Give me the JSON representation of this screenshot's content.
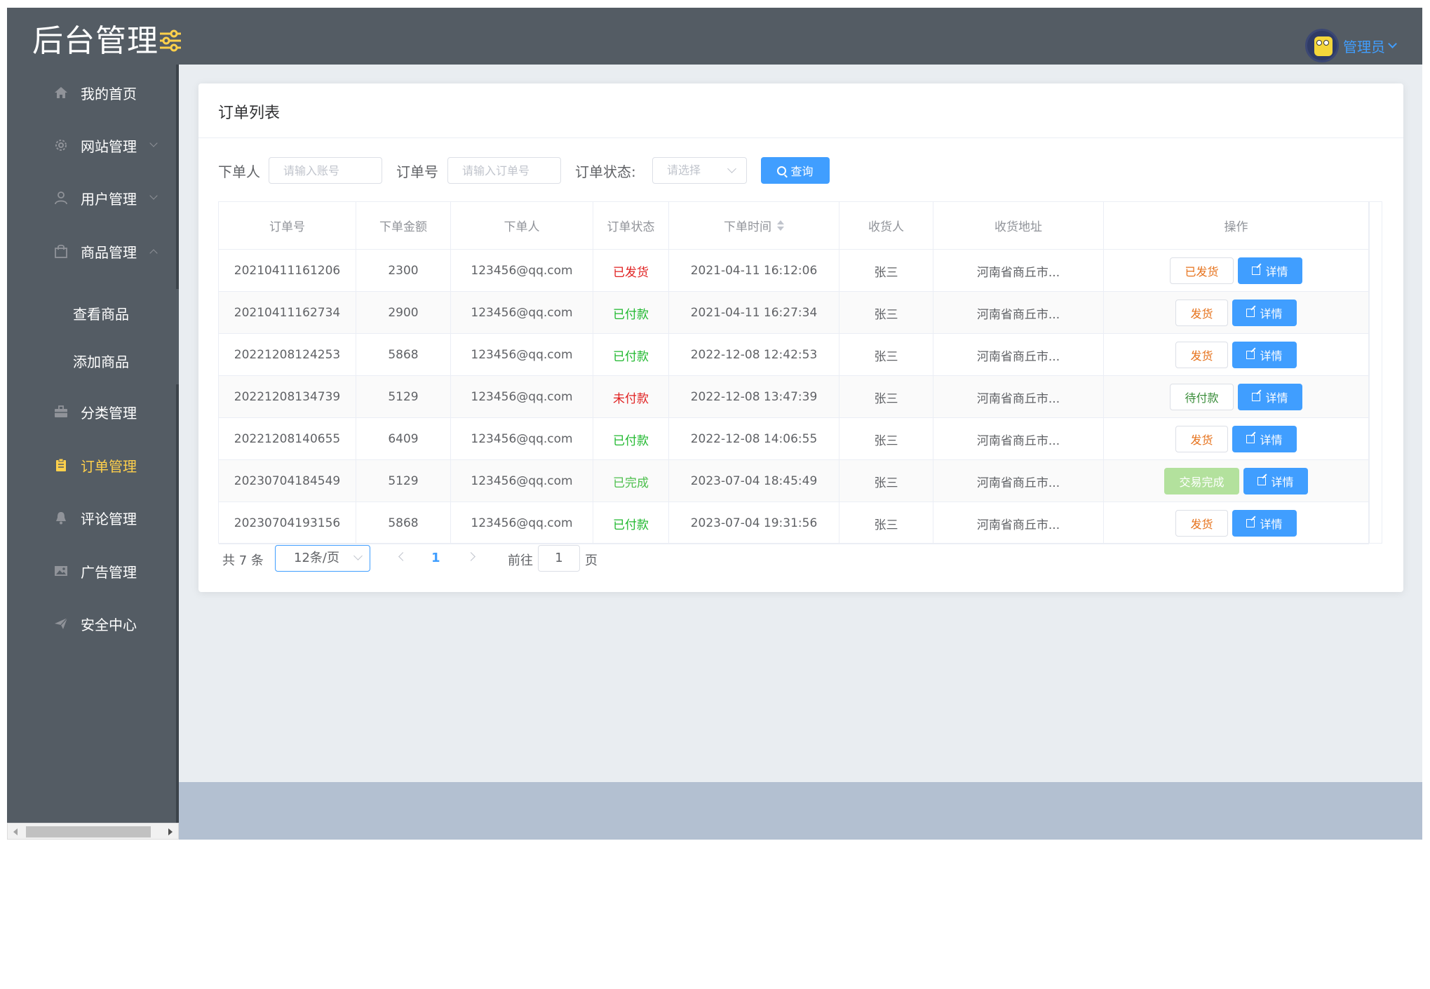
{
  "header": {
    "brand": "后台管理",
    "user_name": "管理员"
  },
  "sidebar": {
    "items": [
      {
        "label": "我的首页",
        "icon": "home-icon"
      },
      {
        "label": "网站管理",
        "icon": "gear-icon"
      },
      {
        "label": "用户管理",
        "icon": "user-icon"
      },
      {
        "label": "商品管理",
        "icon": "shopping-bag-icon"
      },
      {
        "label": "分类管理",
        "icon": "briefcase-icon"
      },
      {
        "label": "订单管理",
        "icon": "clipboard-icon"
      },
      {
        "label": "评论管理",
        "icon": "bell-icon"
      },
      {
        "label": "广告管理",
        "icon": "picture-icon"
      },
      {
        "label": "安全中心",
        "icon": "paper-plane-icon"
      }
    ],
    "sub_items": [
      {
        "label": "查看商品"
      },
      {
        "label": "添加商品"
      }
    ]
  },
  "card": {
    "title": "订单列表"
  },
  "filters": {
    "buyer_label": "下单人",
    "buyer_placeholder": "请输入账号",
    "order_no_label": "订单号",
    "order_no_placeholder": "请输入订单号",
    "status_label": "订单状态:",
    "status_placeholder": "请选择",
    "query_label": "查询"
  },
  "table": {
    "columns": [
      "订单号",
      "下单金额",
      "下单人",
      "订单状态",
      "下单时间",
      "收货人",
      "收货地址",
      "操作"
    ],
    "rows": [
      {
        "order_no": "20210411161206",
        "amount": "2300",
        "buyer": "123456@qq.com",
        "status": "已发货",
        "status_color": "#e02020",
        "time": "2021-04-11 16:12:06",
        "receiver": "张三",
        "address": "河南省商丘市...",
        "action": "已发货",
        "action_style": "orange",
        "detail": "详情"
      },
      {
        "order_no": "20210411162734",
        "amount": "2900",
        "buyer": "123456@qq.com",
        "status": "已付款",
        "status_color": "#1fb82e",
        "time": "2021-04-11 16:27:34",
        "receiver": "张三",
        "address": "河南省商丘市...",
        "action": "发货",
        "action_style": "orange",
        "detail": "详情"
      },
      {
        "order_no": "20221208124253",
        "amount": "5868",
        "buyer": "123456@qq.com",
        "status": "已付款",
        "status_color": "#1fb82e",
        "time": "2022-12-08 12:42:53",
        "receiver": "张三",
        "address": "河南省商丘市...",
        "action": "发货",
        "action_style": "orange",
        "detail": "详情"
      },
      {
        "order_no": "20221208134739",
        "amount": "5129",
        "buyer": "123456@qq.com",
        "status": "未付款",
        "status_color": "#e02020",
        "time": "2022-12-08 13:47:39",
        "receiver": "张三",
        "address": "河南省商丘市...",
        "action": "待付款",
        "action_style": "green",
        "detail": "详情"
      },
      {
        "order_no": "20221208140655",
        "amount": "6409",
        "buyer": "123456@qq.com",
        "status": "已付款",
        "status_color": "#1fb82e",
        "time": "2022-12-08 14:06:55",
        "receiver": "张三",
        "address": "河南省商丘市...",
        "action": "发货",
        "action_style": "orange",
        "detail": "详情"
      },
      {
        "order_no": "20230704184549",
        "amount": "5129",
        "buyer": "123456@qq.com",
        "status": "已完成",
        "status_color": "#4cbf4c",
        "time": "2023-07-04 18:45:49",
        "receiver": "张三",
        "address": "河南省商丘市...",
        "action": "交易完成",
        "action_style": "done",
        "detail": "详情"
      },
      {
        "order_no": "20230704193156",
        "amount": "5868",
        "buyer": "123456@qq.com",
        "status": "已付款",
        "status_color": "#1fb82e",
        "time": "2023-07-04 19:31:56",
        "receiver": "张三",
        "address": "河南省商丘市...",
        "action": "发货",
        "action_style": "orange",
        "detail": "详情"
      }
    ]
  },
  "pagination": {
    "total": "共 7 条",
    "page_size": "12条/页",
    "current": "1",
    "goto_label": "前往",
    "goto_value": "1",
    "page_suffix": "页"
  },
  "colors": {
    "sidebar_bg": "#545c64",
    "active": "#ffd04b",
    "primary": "#409eff",
    "footer": "#b3c0d1"
  }
}
